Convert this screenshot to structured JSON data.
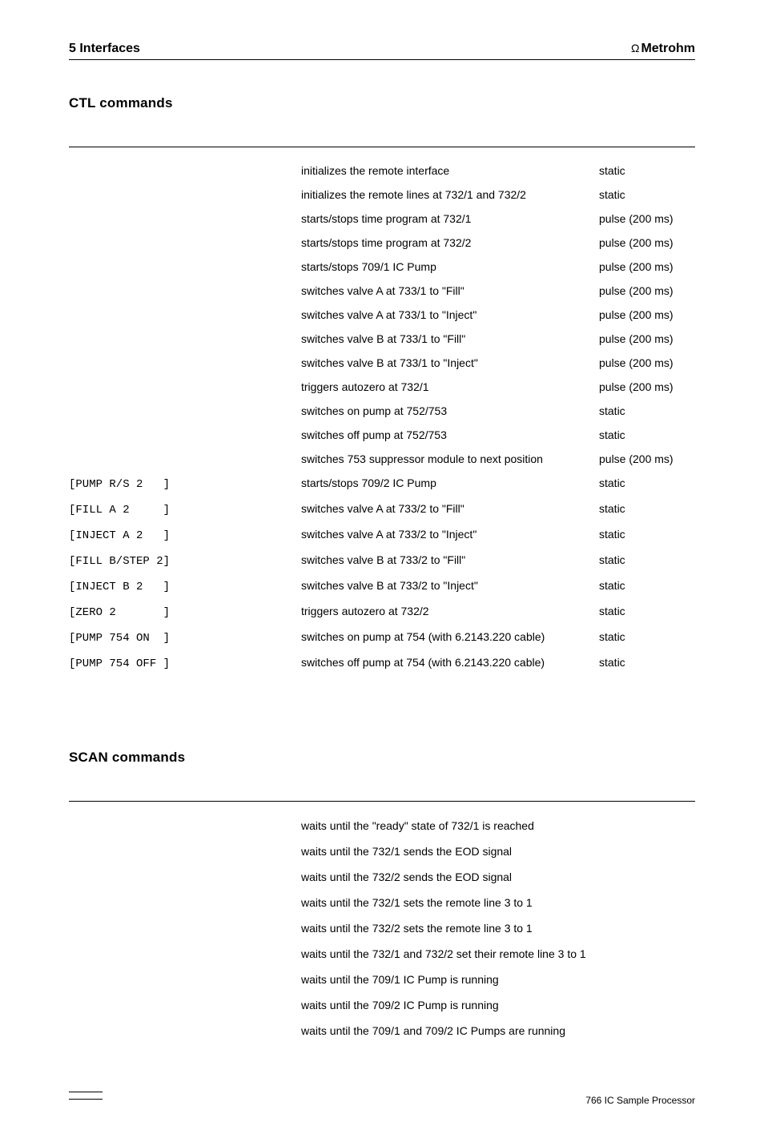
{
  "header": {
    "left": "5  Interfaces",
    "brand_symbol": "Ω",
    "brand_name": "Metrohm"
  },
  "section_ctl": {
    "heading": "CTL commands",
    "rows": [
      {
        "cmd": "",
        "desc": "initializes the remote interface",
        "type": "static"
      },
      {
        "cmd": "",
        "desc": "initializes the remote lines at 732/1 and 732/2",
        "type": "static"
      },
      {
        "cmd": "",
        "desc": "starts/stops time program at 732/1",
        "type": "pulse (200 ms)"
      },
      {
        "cmd": "",
        "desc": "starts/stops time program at 732/2",
        "type": "pulse (200 ms)"
      },
      {
        "cmd": "",
        "desc": "starts/stops 709/1 IC Pump",
        "type": "pulse (200 ms)"
      },
      {
        "cmd": "",
        "desc": "switches valve A at 733/1 to \"Fill\"",
        "type": "pulse (200 ms)"
      },
      {
        "cmd": "",
        "desc": "switches valve A at 733/1 to \"Inject\"",
        "type": "pulse (200 ms)"
      },
      {
        "cmd": "",
        "desc": "switches valve B at 733/1 to \"Fill\"",
        "type": "pulse (200 ms)"
      },
      {
        "cmd": "",
        "desc": "switches valve B at 733/1 to \"Inject\"",
        "type": "pulse (200 ms)"
      },
      {
        "cmd": "",
        "desc": "triggers autozero at 732/1",
        "type": "pulse (200 ms)"
      },
      {
        "cmd": "",
        "desc": "switches on pump at 752/753",
        "type": "static"
      },
      {
        "cmd": "",
        "desc": "switches off pump at 752/753",
        "type": "static"
      },
      {
        "cmd": "",
        "desc": "switches 753 suppressor module to next position",
        "type": "pulse (200 ms)"
      },
      {
        "cmd": "[PUMP R/S 2   ]",
        "desc": "starts/stops 709/2 IC Pump",
        "type": "static"
      },
      {
        "cmd": "[FILL A 2     ]",
        "desc": "switches valve A at 733/2 to \"Fill\"",
        "type": "static"
      },
      {
        "cmd": "[INJECT A 2   ]",
        "desc": "switches valve A at 733/2 to \"Inject\"",
        "type": "static"
      },
      {
        "cmd": "[FILL B/STEP 2]",
        "desc": "switches valve B at 733/2 to \"Fill\"",
        "type": "static"
      },
      {
        "cmd": "[INJECT B 2   ]",
        "desc": "switches valve B at 733/2 to \"Inject\"",
        "type": "static"
      },
      {
        "cmd": "[ZERO 2       ]",
        "desc": "triggers autozero at 732/2",
        "type": "static"
      },
      {
        "cmd": "[PUMP 754 ON  ]",
        "desc": "switches on pump at 754 (with 6.2143.220 cable)",
        "type": "static"
      },
      {
        "cmd": "[PUMP 754 OFF ]",
        "desc": "switches off pump at 754 (with 6.2143.220 cable)",
        "type": "static"
      }
    ]
  },
  "section_scan": {
    "heading": "SCAN commands",
    "rows": [
      {
        "desc": "waits until the \"ready\" state of 732/1 is reached"
      },
      {
        "desc": "waits until the 732/1 sends the EOD signal"
      },
      {
        "desc": "waits until the 732/2 sends the EOD signal"
      },
      {
        "desc": "waits until the 732/1 sets the remote line 3 to 1"
      },
      {
        "desc": "waits until the 732/2 sets the remote line 3 to 1"
      },
      {
        "desc": "waits until the 732/1 and 732/2 set their remote line 3 to 1"
      },
      {
        "desc": "waits until the 709/1 IC Pump is running"
      },
      {
        "desc": "waits until the 709/2 IC Pump is running"
      },
      {
        "desc": "waits until the 709/1 and 709/2 IC Pumps are running"
      }
    ]
  },
  "footer": {
    "right": "766 IC Sample Processor"
  }
}
